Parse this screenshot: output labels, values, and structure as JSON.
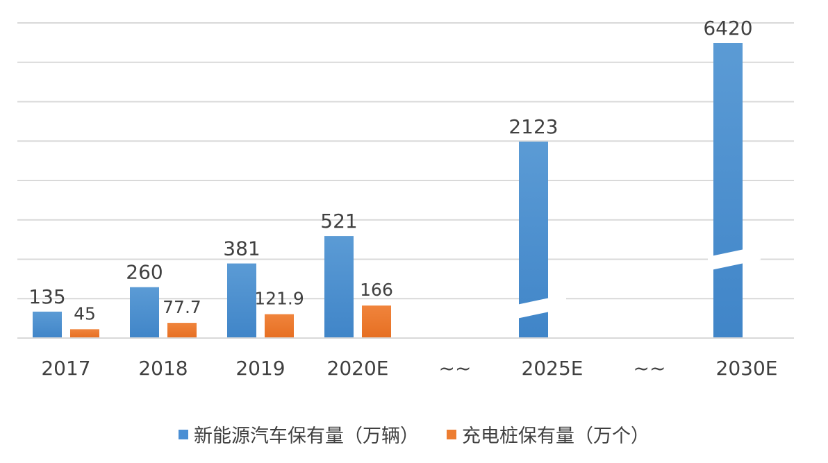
{
  "chart_data": {
    "type": "bar",
    "categories": [
      "2017",
      "2018",
      "2019",
      "2020E",
      "~~",
      "2025E",
      "~~",
      "2030E"
    ],
    "series": [
      {
        "name": "新能源汽车保有量（万辆）",
        "color": "#4a8fd4",
        "values": [
          135,
          260,
          381,
          521,
          null,
          2123,
          null,
          6420
        ],
        "labels": [
          "135",
          "260",
          "381",
          "521",
          "",
          "2123",
          "",
          "6420"
        ]
      },
      {
        "name": "充电桩保有量（万个）",
        "color": "#ed7d31",
        "values": [
          45,
          77.7,
          121.9,
          166,
          null,
          null,
          null,
          null
        ],
        "labels": [
          "45",
          "77.7",
          "121.9",
          "166",
          "",
          "",
          "",
          ""
        ]
      }
    ],
    "broken_axis_bars": [
      "2025E",
      "2030E"
    ],
    "grid": true,
    "legend": "bottom",
    "title": "",
    "xlabel": "",
    "ylabel": ""
  }
}
